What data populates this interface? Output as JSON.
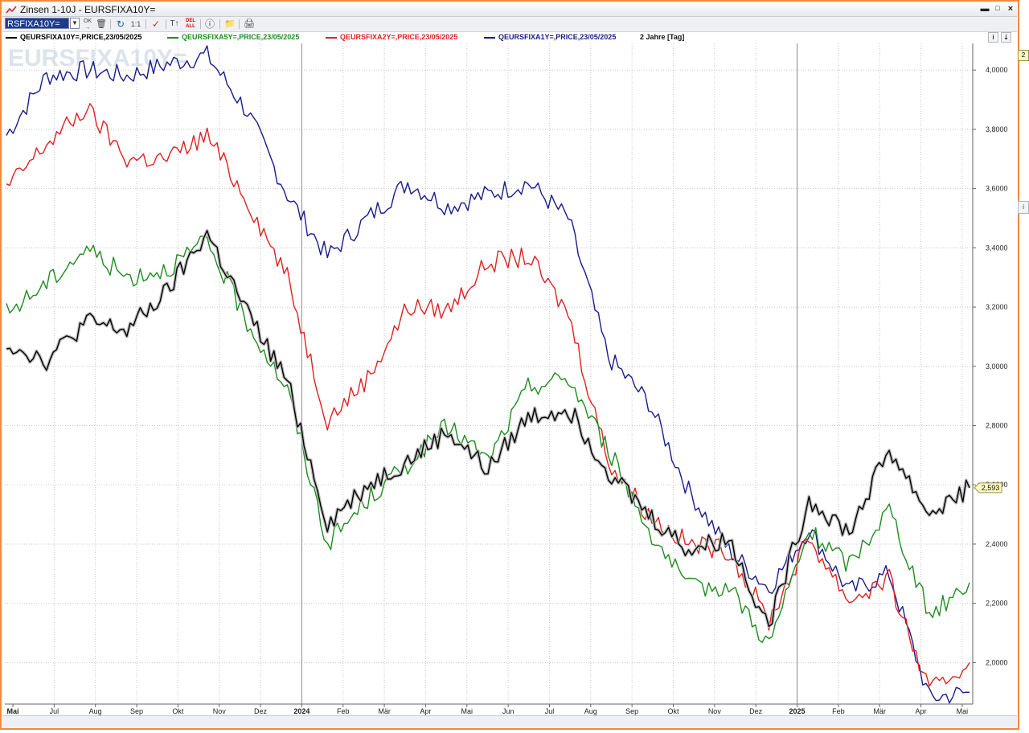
{
  "window": {
    "title": "Zinsen 1-10J - EURSFIXA10Y=",
    "ric_value": "RSFIXA10Y=",
    "watermark": "EURSFIXA10Y=",
    "side_marker": "2",
    "side_button": "i"
  },
  "toolbar": {
    "ok_label": "OK",
    "ratio_label": "1:1",
    "del_label": "DEL",
    "all_label": "ALL"
  },
  "legend": {
    "items": [
      {
        "label": "QEURSFIXA10Y=,PRICE,23/05/2025",
        "color": "#000000"
      },
      {
        "label": "QEURSFIXA5Y=,PRICE,23/05/2025",
        "color": "#1e8c1e"
      },
      {
        "label": "QEURSFIXA2Y=,PRICE,23/05/2025",
        "color": "#e02020"
      },
      {
        "label": "QEURSFIXA1Y=,PRICE,23/05/2025",
        "color": "#1a1a8c"
      }
    ],
    "period": "2 Jahre [Tag]",
    "btn1": "i",
    "btn2": "⇣"
  },
  "chart_data": {
    "type": "line",
    "x_tick_labels": [
      "Mai",
      "Jul",
      "Aug",
      "Sep",
      "Okt",
      "Nov",
      "Dez",
      "2024",
      "Feb",
      "Mär",
      "Apr",
      "Mai",
      "Jun",
      "Jul",
      "Aug",
      "Sep",
      "Okt",
      "Nov",
      "Dez",
      "2025",
      "Feb",
      "Mär",
      "Apr",
      "Mai"
    ],
    "y_tick_labels": [
      "4,0000",
      "3,8000",
      "3,6000",
      "3,4000",
      "3,2000",
      "3,0000",
      "2,8000",
      "2,6000",
      "2,4000",
      "2,2000",
      "2,0000"
    ],
    "ylim": [
      1.86,
      4.09
    ],
    "last_value_label": "2,593",
    "grid": true,
    "x": [
      "2023-05",
      "2023-06",
      "2023-07",
      "2023-08",
      "2023-09",
      "2023-10",
      "2023-11",
      "2023-12",
      "2024-01",
      "2024-02",
      "2024-03",
      "2024-04",
      "2024-05",
      "2024-06",
      "2024-07",
      "2024-08",
      "2024-09",
      "2024-10",
      "2024-11",
      "2024-12",
      "2025-01",
      "2025-02",
      "2025-03",
      "2025-04",
      "2025-05"
    ],
    "series": [
      {
        "name": "QEURSFIXA10Y=,PRICE,23/05/2025",
        "color": "#000000",
        "values": [
          3.08,
          3.02,
          3.15,
          3.12,
          3.25,
          3.45,
          3.18,
          2.95,
          2.47,
          2.6,
          2.68,
          2.78,
          2.65,
          2.83,
          2.86,
          2.65,
          2.5,
          2.38,
          2.42,
          2.12,
          2.55,
          2.44,
          2.72,
          2.5,
          2.59
        ]
      },
      {
        "name": "QEURSFIXA5Y=,PRICE,23/05/2025",
        "color": "#1e8c1e",
        "values": [
          3.18,
          3.28,
          3.4,
          3.3,
          3.33,
          3.42,
          3.15,
          2.92,
          2.4,
          2.55,
          2.67,
          2.8,
          2.68,
          2.93,
          2.96,
          2.72,
          2.45,
          2.25,
          2.26,
          2.06,
          2.44,
          2.33,
          2.52,
          2.16,
          2.27
        ]
      },
      {
        "name": "QEURSFIXA2Y=,PRICE,23/05/2025",
        "color": "#e02020",
        "values": [
          3.6,
          3.75,
          3.87,
          3.7,
          3.7,
          3.78,
          3.56,
          3.3,
          2.82,
          2.96,
          3.2,
          3.19,
          3.35,
          3.37,
          3.18,
          2.68,
          2.5,
          2.4,
          2.38,
          2.14,
          2.42,
          2.21,
          2.28,
          1.9,
          2.0
        ]
      },
      {
        "name": "QEURSFIXA1Y=,PRICE,23/05/2025",
        "color": "#1a1a8c",
        "values": [
          3.78,
          3.98,
          4.0,
          3.98,
          4.02,
          4.05,
          3.86,
          3.58,
          3.37,
          3.5,
          3.62,
          3.54,
          3.58,
          3.62,
          3.5,
          3.03,
          2.88,
          2.58,
          2.38,
          2.25,
          2.45,
          2.24,
          2.3,
          1.88,
          1.9
        ]
      }
    ]
  }
}
